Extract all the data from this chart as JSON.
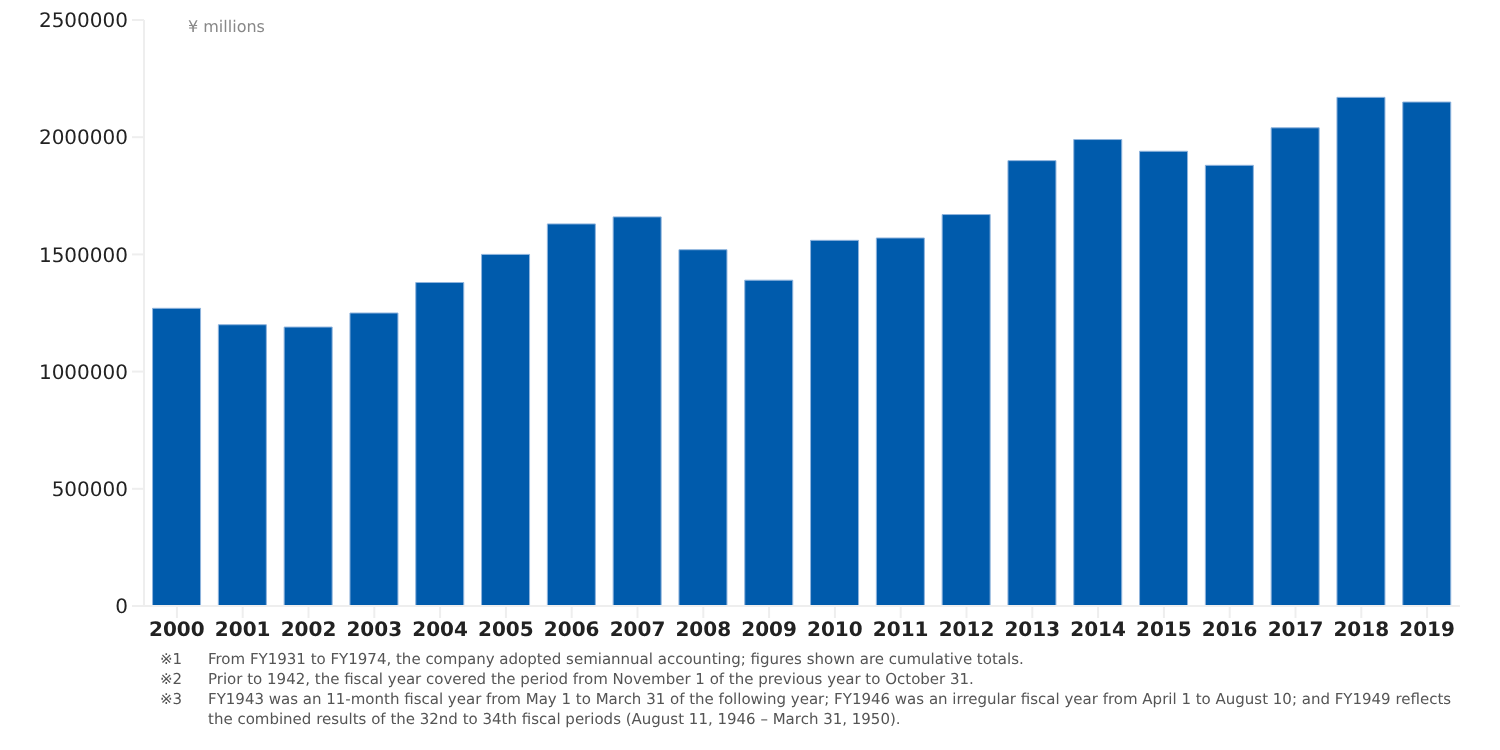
{
  "chart_data": {
    "type": "bar",
    "ylabel": "¥ millions",
    "categories": [
      "2000",
      "2001",
      "2002",
      "2003",
      "2004",
      "2005",
      "2006",
      "2007",
      "2008",
      "2009",
      "2010",
      "2011",
      "2012",
      "2013",
      "2014",
      "2015",
      "2016",
      "2017",
      "2018",
      "2019"
    ],
    "values": [
      1270000,
      1200000,
      1190000,
      1250000,
      1380000,
      1500000,
      1630000,
      1660000,
      1520000,
      1390000,
      1560000,
      1570000,
      1670000,
      1900000,
      1990000,
      1940000,
      1880000,
      2040000,
      2170000,
      2150000
    ],
    "color": "#005bac",
    "ylim": [
      0,
      2500000
    ],
    "yticks": [
      0,
      500000,
      1000000,
      1500000,
      2000000,
      2500000
    ],
    "grid": false,
    "annotations": [
      "※1　From FY1931 to FY1974, the company adopted semiannual accounting; figures shown are cumulative totals.",
      "※2　Prior to 1942, the fiscal year covered the period from November 1 of the previous year to October 31.",
      "※3　FY1943 was an 11-month fiscal year from May 1 to March 31 of the following year; FY1946 was an irregular fiscal year from April 1 to August 10; and FY1949 reflects the combined results of the 32nd to 34th fiscal periods (August 11, 1946 – March 31, 1950)."
    ]
  }
}
